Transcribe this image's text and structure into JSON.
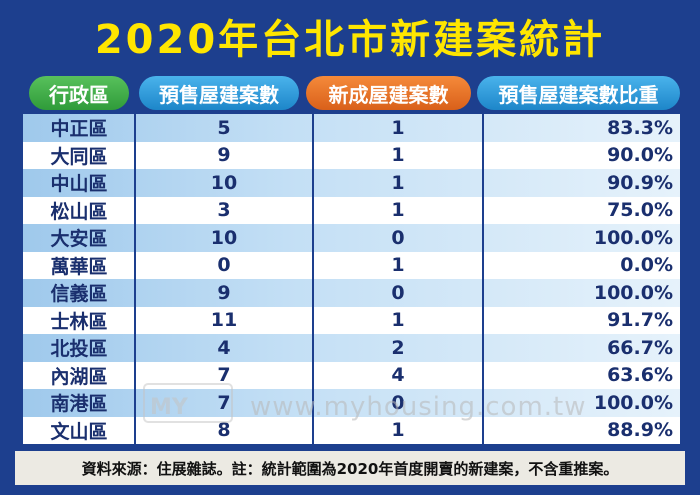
{
  "title": "2020年台北市新建案統計",
  "chart_data": {
    "type": "table",
    "columns": [
      "行政區",
      "預售屋建案數",
      "新成屋建案數",
      "預售屋建案數比重"
    ],
    "rows": [
      {
        "district": "中正區",
        "presale": "5",
        "new": "1",
        "ratio": "83.3%"
      },
      {
        "district": "大同區",
        "presale": "9",
        "new": "1",
        "ratio": "90.0%"
      },
      {
        "district": "中山區",
        "presale": "10",
        "new": "1",
        "ratio": "90.9%"
      },
      {
        "district": "松山區",
        "presale": "3",
        "new": "1",
        "ratio": "75.0%"
      },
      {
        "district": "大安區",
        "presale": "10",
        "new": "0",
        "ratio": "100.0%"
      },
      {
        "district": "萬華區",
        "presale": "0",
        "new": "1",
        "ratio": "0.0%"
      },
      {
        "district": "信義區",
        "presale": "9",
        "new": "0",
        "ratio": "100.0%"
      },
      {
        "district": "士林區",
        "presale": "11",
        "new": "1",
        "ratio": "91.7%"
      },
      {
        "district": "北投區",
        "presale": "4",
        "new": "2",
        "ratio": "66.7%"
      },
      {
        "district": "內湖區",
        "presale": "7",
        "new": "4",
        "ratio": "63.6%"
      },
      {
        "district": "南港區",
        "presale": "7",
        "new": "0",
        "ratio": "100.0%"
      },
      {
        "district": "文山區",
        "presale": "8",
        "new": "1",
        "ratio": "88.9%"
      }
    ]
  },
  "watermark": "www.myhousing.com.tw",
  "footer": "資料來源：住展雜誌。註：統計範圍為2020年首度開賣的新建案，不含重推案。",
  "colors": {
    "background": "#1d3f8e",
    "title": "#ffe600",
    "header_district": "#3aa845",
    "header_presale": "#2a96d8",
    "header_new": "#e8702a",
    "row_stripe": "#b6d8f2",
    "text": "#1a2f6e"
  }
}
